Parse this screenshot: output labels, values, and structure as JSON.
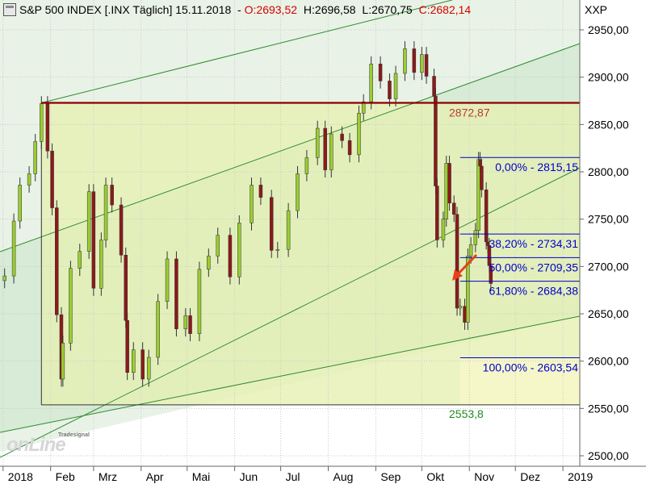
{
  "header": {
    "icon": "window-icon",
    "title": "S&P 500 INDEX [.INX  Täglich] 15.11.2018",
    "open": "O:2693,52",
    "high": "H:2696,58",
    "low": "L:2670,75",
    "close": "C:2682,14",
    "open_color": "#d40000",
    "close_color": "#d40000"
  },
  "price_label": "XXP",
  "logo": {
    "brand": "Tradesignal",
    "text": "onLine"
  },
  "chart_data": {
    "type": "candlestick",
    "title": "S&P 500 INDEX [.INX  Täglich] 15.11.2018",
    "y_range": [
      2490,
      2972
    ],
    "y_ticks": [
      2500,
      2550,
      2600,
      2650,
      2700,
      2750,
      2800,
      2850,
      2900,
      2950
    ],
    "y_tick_labels": [
      "2500,00",
      "2550,00",
      "2600,00",
      "2650,00",
      "2700,00",
      "2750,00",
      "2800,00",
      "2850,00",
      "2900,00",
      "2950,00"
    ],
    "x_ticks": [
      {
        "label": "2018",
        "date": "2018-01-01"
      },
      {
        "label": "Feb",
        "date": "2018-02-01"
      },
      {
        "label": "Mrz",
        "date": "2018-03-01"
      },
      {
        "label": "Apr",
        "date": "2018-04-01"
      },
      {
        "label": "Mai",
        "date": "2018-05-01"
      },
      {
        "label": "Jun",
        "date": "2018-06-01"
      },
      {
        "label": "Jul",
        "date": "2018-07-01"
      },
      {
        "label": "Aug",
        "date": "2018-08-01"
      },
      {
        "label": "Sep",
        "date": "2018-09-01"
      },
      {
        "label": "Okt",
        "date": "2018-10-01"
      },
      {
        "label": "Nov",
        "date": "2018-11-01"
      },
      {
        "label": "Dez",
        "date": "2018-12-01"
      },
      {
        "label": "2019",
        "date": "2019-01-01"
      }
    ],
    "grid": true,
    "colors": {
      "up": "#9acd32",
      "down": "#8b1a1a",
      "channel_fill": "#cfe8cf",
      "box_fill": "#e6f0b4",
      "lower_fill": "#f5f7c8",
      "resistance": "#8b0000",
      "fib": "#0000cc",
      "channel_line": "#2e8b2e",
      "arrow": "#e8401c"
    },
    "closes": [
      {
        "d": "2018-01-02",
        "c": 2690
      },
      {
        "d": "2018-01-08",
        "c": 2748
      },
      {
        "d": "2018-01-12",
        "c": 2786
      },
      {
        "d": "2018-01-18",
        "c": 2798
      },
      {
        "d": "2018-01-22",
        "c": 2832
      },
      {
        "d": "2018-01-26",
        "c": 2872
      },
      {
        "d": "2018-01-30",
        "c": 2822
      },
      {
        "d": "2018-02-02",
        "c": 2762
      },
      {
        "d": "2018-02-05",
        "c": 2649
      },
      {
        "d": "2018-02-08",
        "c": 2581
      },
      {
        "d": "2018-02-09",
        "c": 2619
      },
      {
        "d": "2018-02-14",
        "c": 2698
      },
      {
        "d": "2018-02-20",
        "c": 2716
      },
      {
        "d": "2018-02-26",
        "c": 2779
      },
      {
        "d": "2018-03-01",
        "c": 2677
      },
      {
        "d": "2018-03-06",
        "c": 2728
      },
      {
        "d": "2018-03-09",
        "c": 2786
      },
      {
        "d": "2018-03-13",
        "c": 2765
      },
      {
        "d": "2018-03-19",
        "c": 2712
      },
      {
        "d": "2018-03-22",
        "c": 2643
      },
      {
        "d": "2018-03-23",
        "c": 2588
      },
      {
        "d": "2018-03-27",
        "c": 2612
      },
      {
        "d": "2018-04-02",
        "c": 2581
      },
      {
        "d": "2018-04-06",
        "c": 2604
      },
      {
        "d": "2018-04-12",
        "c": 2663
      },
      {
        "d": "2018-04-18",
        "c": 2708
      },
      {
        "d": "2018-04-24",
        "c": 2634
      },
      {
        "d": "2018-04-30",
        "c": 2648
      },
      {
        "d": "2018-05-03",
        "c": 2629
      },
      {
        "d": "2018-05-09",
        "c": 2697
      },
      {
        "d": "2018-05-15",
        "c": 2711
      },
      {
        "d": "2018-05-21",
        "c": 2733
      },
      {
        "d": "2018-05-29",
        "c": 2689
      },
      {
        "d": "2018-06-04",
        "c": 2746
      },
      {
        "d": "2018-06-12",
        "c": 2786
      },
      {
        "d": "2018-06-18",
        "c": 2773
      },
      {
        "d": "2018-06-25",
        "c": 2717
      },
      {
        "d": "2018-06-29",
        "c": 2718
      },
      {
        "d": "2018-07-06",
        "c": 2759
      },
      {
        "d": "2018-07-12",
        "c": 2798
      },
      {
        "d": "2018-07-18",
        "c": 2815
      },
      {
        "d": "2018-07-25",
        "c": 2846
      },
      {
        "d": "2018-07-30",
        "c": 2802
      },
      {
        "d": "2018-08-03",
        "c": 2840
      },
      {
        "d": "2018-08-10",
        "c": 2833
      },
      {
        "d": "2018-08-15",
        "c": 2818
      },
      {
        "d": "2018-08-21",
        "c": 2862
      },
      {
        "d": "2018-08-24",
        "c": 2874
      },
      {
        "d": "2018-08-29",
        "c": 2914
      },
      {
        "d": "2018-09-04",
        "c": 2896
      },
      {
        "d": "2018-09-10",
        "c": 2877
      },
      {
        "d": "2018-09-14",
        "c": 2904
      },
      {
        "d": "2018-09-20",
        "c": 2930
      },
      {
        "d": "2018-09-26",
        "c": 2905
      },
      {
        "d": "2018-10-01",
        "c": 2924
      },
      {
        "d": "2018-10-04",
        "c": 2901
      },
      {
        "d": "2018-10-09",
        "c": 2880
      },
      {
        "d": "2018-10-10",
        "c": 2785
      },
      {
        "d": "2018-10-11",
        "c": 2728
      },
      {
        "d": "2018-10-15",
        "c": 2750
      },
      {
        "d": "2018-10-17",
        "c": 2809
      },
      {
        "d": "2018-10-19",
        "c": 2767
      },
      {
        "d": "2018-10-22",
        "c": 2755
      },
      {
        "d": "2018-10-24",
        "c": 2656
      },
      {
        "d": "2018-10-26",
        "c": 2658
      },
      {
        "d": "2018-10-29",
        "c": 2641
      },
      {
        "d": "2018-10-31",
        "c": 2711
      },
      {
        "d": "2018-11-02",
        "c": 2723
      },
      {
        "d": "2018-11-05",
        "c": 2738
      },
      {
        "d": "2018-11-07",
        "c": 2813
      },
      {
        "d": "2018-11-08",
        "c": 2806
      },
      {
        "d": "2018-11-09",
        "c": 2781
      },
      {
        "d": "2018-11-12",
        "c": 2726
      },
      {
        "d": "2018-11-13",
        "c": 2722
      },
      {
        "d": "2018-11-14",
        "c": 2701
      },
      {
        "d": "2018-11-15",
        "c": 2682
      }
    ],
    "horizontal_lines": [
      {
        "value": 2872.87,
        "label": "2872,87",
        "color": "#c0392b"
      },
      {
        "value": 2553.8,
        "label": "2553,8",
        "color": "#228b22"
      }
    ],
    "fibonacci": [
      {
        "level": "0,00%",
        "value": 2815.15,
        "label": "0,00% - 2815,15"
      },
      {
        "level": "38,20%",
        "value": 2734.31,
        "label": "38,20% - 2734,31"
      },
      {
        "level": "50,00%",
        "value": 2709.35,
        "label": "50,00% - 2709,35"
      },
      {
        "level": "61,80%",
        "value": 2684.38,
        "label": "61,80% - 2684,38"
      },
      {
        "level": "100,00%",
        "value": 2603.54,
        "label": "100,00% - 2603,54"
      }
    ]
  }
}
